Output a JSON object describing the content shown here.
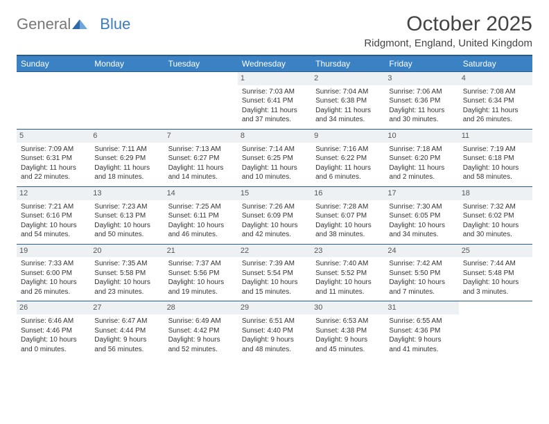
{
  "logo": {
    "general": "General",
    "blue": "Blue"
  },
  "title": "October 2025",
  "location": "Ridgmont, England, United Kingdom",
  "colors": {
    "header_bg": "#3b82c4",
    "header_text": "#ffffff",
    "border": "#2a5a8a",
    "daynum_bg": "#eef1f3",
    "logo_blue": "#3b7bbf",
    "text": "#333333",
    "page_bg": "#ffffff"
  },
  "day_names": [
    "Sunday",
    "Monday",
    "Tuesday",
    "Wednesday",
    "Thursday",
    "Friday",
    "Saturday"
  ],
  "weeks": [
    [
      null,
      null,
      null,
      {
        "n": "1",
        "sr": "7:03 AM",
        "ss": "6:41 PM",
        "dl": "11 hours and 37 minutes."
      },
      {
        "n": "2",
        "sr": "7:04 AM",
        "ss": "6:38 PM",
        "dl": "11 hours and 34 minutes."
      },
      {
        "n": "3",
        "sr": "7:06 AM",
        "ss": "6:36 PM",
        "dl": "11 hours and 30 minutes."
      },
      {
        "n": "4",
        "sr": "7:08 AM",
        "ss": "6:34 PM",
        "dl": "11 hours and 26 minutes."
      }
    ],
    [
      {
        "n": "5",
        "sr": "7:09 AM",
        "ss": "6:31 PM",
        "dl": "11 hours and 22 minutes."
      },
      {
        "n": "6",
        "sr": "7:11 AM",
        "ss": "6:29 PM",
        "dl": "11 hours and 18 minutes."
      },
      {
        "n": "7",
        "sr": "7:13 AM",
        "ss": "6:27 PM",
        "dl": "11 hours and 14 minutes."
      },
      {
        "n": "8",
        "sr": "7:14 AM",
        "ss": "6:25 PM",
        "dl": "11 hours and 10 minutes."
      },
      {
        "n": "9",
        "sr": "7:16 AM",
        "ss": "6:22 PM",
        "dl": "11 hours and 6 minutes."
      },
      {
        "n": "10",
        "sr": "7:18 AM",
        "ss": "6:20 PM",
        "dl": "11 hours and 2 minutes."
      },
      {
        "n": "11",
        "sr": "7:19 AM",
        "ss": "6:18 PM",
        "dl": "10 hours and 58 minutes."
      }
    ],
    [
      {
        "n": "12",
        "sr": "7:21 AM",
        "ss": "6:16 PM",
        "dl": "10 hours and 54 minutes."
      },
      {
        "n": "13",
        "sr": "7:23 AM",
        "ss": "6:13 PM",
        "dl": "10 hours and 50 minutes."
      },
      {
        "n": "14",
        "sr": "7:25 AM",
        "ss": "6:11 PM",
        "dl": "10 hours and 46 minutes."
      },
      {
        "n": "15",
        "sr": "7:26 AM",
        "ss": "6:09 PM",
        "dl": "10 hours and 42 minutes."
      },
      {
        "n": "16",
        "sr": "7:28 AM",
        "ss": "6:07 PM",
        "dl": "10 hours and 38 minutes."
      },
      {
        "n": "17",
        "sr": "7:30 AM",
        "ss": "6:05 PM",
        "dl": "10 hours and 34 minutes."
      },
      {
        "n": "18",
        "sr": "7:32 AM",
        "ss": "6:02 PM",
        "dl": "10 hours and 30 minutes."
      }
    ],
    [
      {
        "n": "19",
        "sr": "7:33 AM",
        "ss": "6:00 PM",
        "dl": "10 hours and 26 minutes."
      },
      {
        "n": "20",
        "sr": "7:35 AM",
        "ss": "5:58 PM",
        "dl": "10 hours and 23 minutes."
      },
      {
        "n": "21",
        "sr": "7:37 AM",
        "ss": "5:56 PM",
        "dl": "10 hours and 19 minutes."
      },
      {
        "n": "22",
        "sr": "7:39 AM",
        "ss": "5:54 PM",
        "dl": "10 hours and 15 minutes."
      },
      {
        "n": "23",
        "sr": "7:40 AM",
        "ss": "5:52 PM",
        "dl": "10 hours and 11 minutes."
      },
      {
        "n": "24",
        "sr": "7:42 AM",
        "ss": "5:50 PM",
        "dl": "10 hours and 7 minutes."
      },
      {
        "n": "25",
        "sr": "7:44 AM",
        "ss": "5:48 PM",
        "dl": "10 hours and 3 minutes."
      }
    ],
    [
      {
        "n": "26",
        "sr": "6:46 AM",
        "ss": "4:46 PM",
        "dl": "10 hours and 0 minutes."
      },
      {
        "n": "27",
        "sr": "6:47 AM",
        "ss": "4:44 PM",
        "dl": "9 hours and 56 minutes."
      },
      {
        "n": "28",
        "sr": "6:49 AM",
        "ss": "4:42 PM",
        "dl": "9 hours and 52 minutes."
      },
      {
        "n": "29",
        "sr": "6:51 AM",
        "ss": "4:40 PM",
        "dl": "9 hours and 48 minutes."
      },
      {
        "n": "30",
        "sr": "6:53 AM",
        "ss": "4:38 PM",
        "dl": "9 hours and 45 minutes."
      },
      {
        "n": "31",
        "sr": "6:55 AM",
        "ss": "4:36 PM",
        "dl": "9 hours and 41 minutes."
      },
      null
    ]
  ],
  "labels": {
    "sunrise": "Sunrise:",
    "sunset": "Sunset:",
    "daylight": "Daylight:"
  }
}
